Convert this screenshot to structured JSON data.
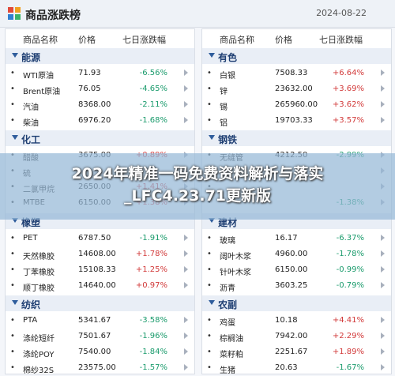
{
  "header": {
    "title": "商品涨跌榜",
    "date": "2024-08-22"
  },
  "columns_header": {
    "name": "商品名称",
    "price": "价格",
    "change": "七日涨跌幅"
  },
  "left_sections": [
    {
      "name": "能源",
      "items": [
        {
          "name": "WTI原油",
          "price": "71.93",
          "change": "-6.56%"
        },
        {
          "name": "Brent原油",
          "price": "76.05",
          "change": "-4.65%"
        },
        {
          "name": "汽油",
          "price": "8368.00",
          "change": "-2.11%"
        },
        {
          "name": "柴油",
          "price": "6976.20",
          "change": "-1.68%"
        }
      ]
    },
    {
      "name": "化工",
      "items": [
        {
          "name": "醋酸",
          "price": "3675.00",
          "change": "+0.89%"
        },
        {
          "name": "硫",
          "price": "",
          "change": ""
        },
        {
          "name": "二氯甲烷",
          "price": "2650.00",
          "change": "+1.41%"
        },
        {
          "name": "MTBE",
          "price": "6150.00",
          "change": "+1.38%"
        }
      ]
    },
    {
      "name": "橡塑",
      "items": [
        {
          "name": "PET",
          "price": "6787.50",
          "change": "-1.91%"
        },
        {
          "name": "天然橡胶",
          "price": "14608.00",
          "change": "+1.78%"
        },
        {
          "name": "丁苯橡胶",
          "price": "15108.33",
          "change": "+1.25%"
        },
        {
          "name": "顺丁橡胶",
          "price": "14640.00",
          "change": "+0.97%"
        }
      ]
    },
    {
      "name": "纺织",
      "items": [
        {
          "name": "PTA",
          "price": "5341.67",
          "change": "-3.58%"
        },
        {
          "name": "涤纶短纤",
          "price": "7501.67",
          "change": "-1.96%"
        },
        {
          "name": "涤纶POY",
          "price": "7540.00",
          "change": "-1.84%"
        },
        {
          "name": "棉纱32S",
          "price": "23575.00",
          "change": "-1.57%"
        }
      ]
    }
  ],
  "right_sections": [
    {
      "name": "有色",
      "items": [
        {
          "name": "白银",
          "price": "7508.33",
          "change": "+6.64%"
        },
        {
          "name": "锌",
          "price": "23632.00",
          "change": "+3.69%"
        },
        {
          "name": "锡",
          "price": "265960.00",
          "change": "+3.62%"
        },
        {
          "name": "铝",
          "price": "19703.33",
          "change": "+3.57%"
        }
      ]
    },
    {
      "name": "钢铁",
      "items": [
        {
          "name": "无缝管",
          "price": "4212.50",
          "change": "-2.99%"
        },
        {
          "name": "",
          "price": "",
          "change": ""
        },
        {
          "name": "",
          "price": "",
          "change": ""
        },
        {
          "name": "",
          "price": "",
          "change": "-1.38%"
        }
      ]
    },
    {
      "name": "建材",
      "items": [
        {
          "name": "玻璃",
          "price": "16.17",
          "change": "-6.37%"
        },
        {
          "name": "阔叶木浆",
          "price": "4960.00",
          "change": "-1.78%"
        },
        {
          "name": "针叶木浆",
          "price": "6150.00",
          "change": "-0.99%"
        },
        {
          "name": "沥青",
          "price": "3603.25",
          "change": "-0.79%"
        }
      ]
    },
    {
      "name": "农副",
      "items": [
        {
          "name": "鸡蛋",
          "price": "10.18",
          "change": "+4.41%"
        },
        {
          "name": "棕榈油",
          "price": "7942.00",
          "change": "+2.29%"
        },
        {
          "name": "菜籽粕",
          "price": "2251.67",
          "change": "+1.89%"
        },
        {
          "name": "生猪",
          "price": "20.63",
          "change": "-1.67%"
        }
      ]
    }
  ],
  "banner": {
    "line1": "2024年精准一码免费资料解析与落实",
    "line2": "_LFC4.23.71更新版"
  },
  "colors": {
    "up": "#d23a3a",
    "down": "#1a9b6c",
    "section_bg": "#e9eef6",
    "section_text": "#1f3f73"
  }
}
